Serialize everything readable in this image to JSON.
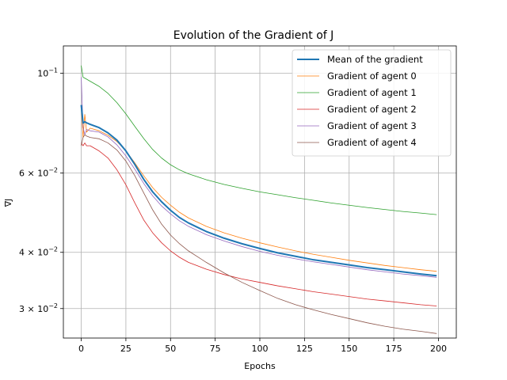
{
  "chart_data": {
    "type": "line",
    "title": "Evolution of the Gradient of J",
    "xlabel": "Epochs",
    "ylabel": "∇J",
    "xlim": [
      -10,
      210
    ],
    "ylim": [
      0.0258,
      0.115
    ],
    "yscale": "log",
    "grid": "x and y major",
    "legend_position": "top-right",
    "x_ticks": [
      0,
      25,
      50,
      75,
      100,
      125,
      150,
      175,
      200
    ],
    "x_tick_labels": [
      "0",
      "25",
      "50",
      "75",
      "100",
      "125",
      "150",
      "175",
      "200"
    ],
    "y_ticks": [
      0.03,
      0.04,
      0.06,
      0.1
    ],
    "y_tick_labels": [
      {
        "base": "3 × 10",
        "exp": "−2"
      },
      {
        "base": "4 × 10",
        "exp": "−2"
      },
      {
        "base": "6 × 10",
        "exp": "−2"
      },
      {
        "base": "10",
        "exp": "−1"
      }
    ],
    "x": [
      0,
      1,
      2,
      3,
      5,
      10,
      15,
      20,
      25,
      30,
      35,
      40,
      45,
      50,
      55,
      60,
      70,
      80,
      90,
      100,
      110,
      120,
      130,
      140,
      150,
      160,
      170,
      180,
      190,
      199
    ],
    "series": [
      {
        "name": "Mean of the gradient",
        "color": "#1f77b4",
        "width": 2,
        "values": [
          0.085,
          0.0775,
          0.078,
          0.0776,
          0.077,
          0.0757,
          0.0737,
          0.071,
          0.0672,
          0.0627,
          0.0581,
          0.0545,
          0.0518,
          0.0496,
          0.0478,
          0.0465,
          0.0445,
          0.043,
          0.0418,
          0.0408,
          0.0399,
          0.0392,
          0.0385,
          0.038,
          0.0375,
          0.037,
          0.0366,
          0.0362,
          0.0358,
          0.0355
        ]
      },
      {
        "name": "Gradient of agent 0",
        "color": "#ff7f0e",
        "width": 0.8,
        "values": [
          0.084,
          0.072,
          0.081,
          0.074,
          0.0755,
          0.0745,
          0.0728,
          0.0705,
          0.0672,
          0.0632,
          0.0592,
          0.0557,
          0.053,
          0.0509,
          0.0491,
          0.0477,
          0.0457,
          0.0442,
          0.043,
          0.042,
          0.0411,
          0.0403,
          0.0396,
          0.039,
          0.0384,
          0.0379,
          0.0374,
          0.037,
          0.0366,
          0.0363
        ]
      },
      {
        "name": "Gradient of agent 1",
        "color": "#2ca02c",
        "width": 0.8,
        "values": [
          0.104,
          0.098,
          0.0975,
          0.097,
          0.096,
          0.0935,
          0.0902,
          0.086,
          0.0812,
          0.0762,
          0.0716,
          0.0677,
          0.0648,
          0.0626,
          0.061,
          0.0598,
          0.058,
          0.0566,
          0.0555,
          0.0545,
          0.0537,
          0.0529,
          0.0522,
          0.0515,
          0.0509,
          0.0503,
          0.0498,
          0.0493,
          0.0489,
          0.0485
        ]
      },
      {
        "name": "Gradient of agent 2",
        "color": "#d62728",
        "width": 0.8,
        "values": [
          0.07,
          0.069,
          0.07,
          0.069,
          0.069,
          0.0672,
          0.0648,
          0.061,
          0.0565,
          0.0515,
          0.0472,
          0.0442,
          0.042,
          0.0403,
          0.039,
          0.038,
          0.0367,
          0.0357,
          0.0349,
          0.0343,
          0.0337,
          0.0332,
          0.0327,
          0.0323,
          0.0319,
          0.0315,
          0.0312,
          0.0309,
          0.0306,
          0.0304
        ]
      },
      {
        "name": "Gradient of agent 3",
        "color": "#9467bd",
        "width": 0.8,
        "values": [
          0.098,
          0.076,
          0.073,
          0.075,
          0.0745,
          0.074,
          0.0722,
          0.0693,
          0.0655,
          0.0612,
          0.0569,
          0.0534,
          0.0507,
          0.0487,
          0.047,
          0.0457,
          0.0438,
          0.0424,
          0.0412,
          0.0402,
          0.0394,
          0.0387,
          0.0381,
          0.0376,
          0.0371,
          0.0366,
          0.0362,
          0.0358,
          0.0355,
          0.0352
        ]
      },
      {
        "name": "Gradient of agent 4",
        "color": "#8c564b",
        "width": 0.8,
        "values": [
          0.069,
          0.072,
          0.073,
          0.0725,
          0.072,
          0.0715,
          0.07,
          0.0675,
          0.0638,
          0.0592,
          0.0542,
          0.0497,
          0.0462,
          0.0437,
          0.0418,
          0.0403,
          0.038,
          0.036,
          0.0343,
          0.0329,
          0.0316,
          0.0306,
          0.0298,
          0.0291,
          0.0285,
          0.0279,
          0.0274,
          0.027,
          0.0267,
          0.0264
        ]
      }
    ]
  }
}
